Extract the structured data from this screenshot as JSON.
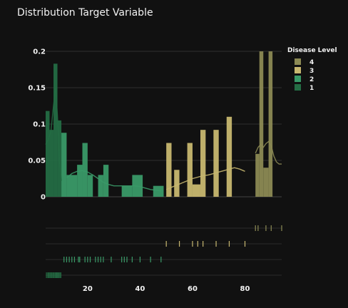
{
  "chart_data": {
    "type": "histogram",
    "title": "Distribution Target Variable",
    "xlim": [
      4,
      94
    ],
    "ylim": [
      0,
      0.2
    ],
    "y_ticks": [
      0,
      0.05,
      0.1,
      0.15,
      0.2
    ],
    "y_tick_labels": [
      "0",
      "0.05",
      "0.1",
      "0.15",
      "0.2"
    ],
    "x_ticks": [
      20,
      40,
      60,
      80
    ],
    "x_tick_labels": [
      "20",
      "40",
      "60",
      "80"
    ],
    "grid": true,
    "legend": {
      "title": "Disease Level",
      "position": "top-right",
      "entries": [
        {
          "label": "4",
          "color": "#8c8a54"
        },
        {
          "label": "3",
          "color": "#c8b870"
        },
        {
          "label": "2",
          "color": "#3a9a68"
        },
        {
          "label": "1",
          "color": "#246d44"
        }
      ]
    },
    "series": [
      {
        "name": "1",
        "color": "#246d44",
        "bins": [
          {
            "x0": 4,
            "x1": 5.5,
            "y": 0.118
          },
          {
            "x0": 5.5,
            "x1": 7,
            "y": 0.092
          },
          {
            "x0": 7,
            "x1": 8.5,
            "y": 0.183
          },
          {
            "x0": 8.5,
            "x1": 10,
            "y": 0.105
          }
        ],
        "kde": [
          [
            4,
            0.072
          ],
          [
            5,
            0.078
          ],
          [
            6,
            0.09
          ],
          [
            7,
            0.125
          ],
          [
            7.8,
            0.15
          ],
          [
            8.5,
            0.112
          ],
          [
            9.3,
            0.048
          ],
          [
            10,
            0.022
          ]
        ],
        "rug": [
          4.3,
          4.8,
          5.2,
          5.6,
          6,
          6.4,
          6.8,
          7.2,
          7.6,
          8,
          8.3,
          8.6,
          9,
          9.4,
          9.8
        ]
      },
      {
        "name": "2",
        "color": "#3a9a68",
        "bins": [
          {
            "x0": 10,
            "x1": 12,
            "y": 0.088
          },
          {
            "x0": 12,
            "x1": 16,
            "y": 0.03
          },
          {
            "x0": 16,
            "x1": 18,
            "y": 0.044
          },
          {
            "x0": 18,
            "x1": 20,
            "y": 0.074
          },
          {
            "x0": 20,
            "x1": 22,
            "y": 0.03
          },
          {
            "x0": 24,
            "x1": 26,
            "y": 0.03
          },
          {
            "x0": 26,
            "x1": 28,
            "y": 0.044
          },
          {
            "x0": 33,
            "x1": 37,
            "y": 0.015
          },
          {
            "x0": 37,
            "x1": 41,
            "y": 0.03
          },
          {
            "x0": 45,
            "x1": 49,
            "y": 0.015
          }
        ],
        "kde": [
          [
            12,
            0.026
          ],
          [
            14,
            0.032
          ],
          [
            16,
            0.035
          ],
          [
            18,
            0.036
          ],
          [
            20,
            0.034
          ],
          [
            22,
            0.03
          ],
          [
            24,
            0.025
          ],
          [
            26,
            0.02
          ],
          [
            28,
            0.017
          ],
          [
            30,
            0.015
          ],
          [
            32,
            0.015
          ],
          [
            34,
            0.015
          ],
          [
            36,
            0.015
          ],
          [
            38,
            0.015
          ],
          [
            40,
            0.014
          ],
          [
            42,
            0.012
          ],
          [
            44,
            0.01
          ],
          [
            46,
            0.009
          ],
          [
            48,
            0.008
          ]
        ],
        "rug": [
          11,
          12,
          13,
          14,
          15,
          16.5,
          17,
          19,
          20,
          21,
          23,
          24,
          25,
          26,
          29,
          33,
          34,
          35,
          37,
          40,
          44,
          48
        ]
      },
      {
        "name": "3",
        "color": "#c8b870",
        "bins": [
          {
            "x0": 50,
            "x1": 52,
            "y": 0.074
          },
          {
            "x0": 53,
            "x1": 55,
            "y": 0.037
          },
          {
            "x0": 58,
            "x1": 60,
            "y": 0.074
          },
          {
            "x0": 60,
            "x1": 63,
            "y": 0.017
          },
          {
            "x0": 63,
            "x1": 65,
            "y": 0.092
          },
          {
            "x0": 68,
            "x1": 70,
            "y": 0.092
          },
          {
            "x0": 73,
            "x1": 75,
            "y": 0.11
          }
        ],
        "kde": [
          [
            50,
            0.01
          ],
          [
            52,
            0.013
          ],
          [
            54,
            0.016
          ],
          [
            56,
            0.019
          ],
          [
            58,
            0.022
          ],
          [
            60,
            0.025
          ],
          [
            62,
            0.027
          ],
          [
            64,
            0.029
          ],
          [
            66,
            0.03
          ],
          [
            68,
            0.032
          ],
          [
            70,
            0.034
          ],
          [
            72,
            0.036
          ],
          [
            74,
            0.038
          ],
          [
            76,
            0.04
          ],
          [
            78,
            0.038
          ],
          [
            80,
            0.035
          ]
        ],
        "rug": [
          50,
          55,
          60,
          62,
          64,
          69,
          74,
          80
        ]
      },
      {
        "name": "4",
        "color": "#8c8a54",
        "bins": [
          {
            "x0": 84,
            "x1": 85.5,
            "y": 0.059
          },
          {
            "x0": 85.5,
            "x1": 87,
            "y": 0.2
          },
          {
            "x0": 87,
            "x1": 89,
            "y": 0.04
          },
          {
            "x0": 89,
            "x1": 90.5,
            "y": 0.2
          }
        ],
        "kde": [
          [
            84,
            0.06
          ],
          [
            85,
            0.068
          ],
          [
            86,
            0.072
          ],
          [
            87,
            0.068
          ],
          [
            88,
            0.073
          ],
          [
            89,
            0.076
          ],
          [
            90,
            0.07
          ],
          [
            91,
            0.056
          ],
          [
            92,
            0.048
          ],
          [
            93,
            0.045
          ],
          [
            94,
            0.045
          ]
        ],
        "rug": [
          84,
          85,
          88,
          90,
          94
        ]
      }
    ]
  }
}
